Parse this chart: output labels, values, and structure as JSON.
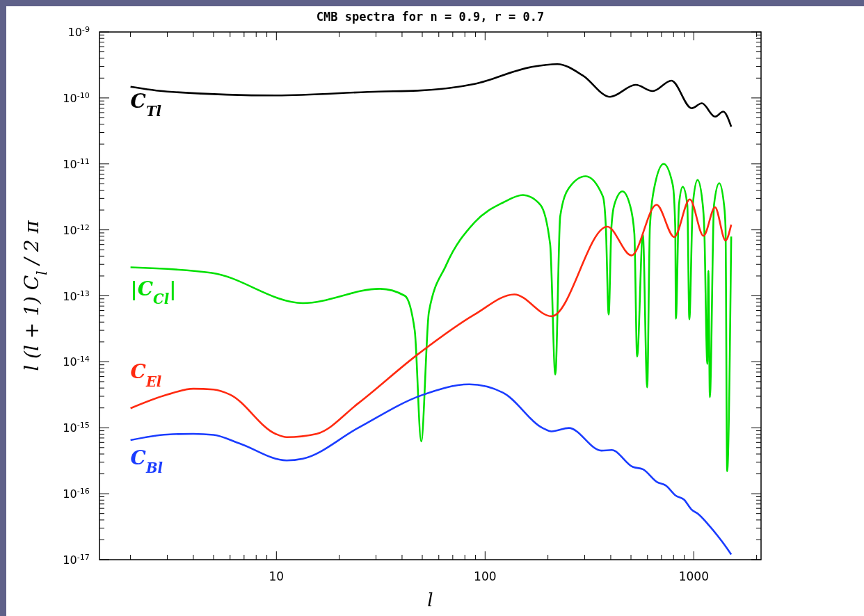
{
  "chart_data": {
    "type": "line",
    "title": "CMB spectra for n = 0.9, r = 0.7",
    "xlabel": "l",
    "ylabel": "l (l + 1) C$_{l}$ / 2 π",
    "log": "xy",
    "xlim": [
      1.42,
      2100
    ],
    "ylim": [
      1e-17,
      1e-09
    ],
    "xticks": [
      {
        "value": 2,
        "label": null
      },
      {
        "value": 3,
        "label": null
      },
      {
        "value": 4,
        "label": null
      },
      {
        "value": 5,
        "label": null
      },
      {
        "value": 6,
        "label": null
      },
      {
        "value": 7,
        "label": null
      },
      {
        "value": 8,
        "label": null
      },
      {
        "value": 9,
        "label": null
      },
      10,
      {
        "value": 20,
        "label": null
      },
      {
        "value": 30,
        "label": null
      },
      {
        "value": 40,
        "label": null
      },
      {
        "value": 50,
        "label": null
      },
      {
        "value": 60,
        "label": null
      },
      {
        "value": 70,
        "label": null
      },
      {
        "value": 80,
        "label": null
      },
      {
        "value": 90,
        "label": null
      },
      100,
      {
        "value": 200,
        "label": null
      },
      {
        "value": 300,
        "label": null
      },
      {
        "value": 400,
        "label": null
      },
      {
        "value": 500,
        "label": null
      },
      {
        "value": 600,
        "label": null
      },
      {
        "value": 700,
        "label": null
      },
      {
        "value": 800,
        "label": null
      },
      {
        "value": 900,
        "label": null
      },
      1000,
      {
        "value": 2000,
        "label": null
      }
    ],
    "yticks": [
      {
        "value": 1e-17,
        "label": "10$^{-17}$"
      },
      {
        "value": 2e-17,
        "label": null
      },
      {
        "value": 3e-17,
        "label": null
      },
      {
        "value": 4e-17,
        "label": null
      },
      {
        "value": 5e-17,
        "label": null
      },
      {
        "value": 6e-17,
        "label": null
      },
      {
        "value": 7e-17,
        "label": null
      },
      {
        "value": 8e-17,
        "label": null
      },
      {
        "value": 9e-17,
        "label": null
      },
      {
        "value": 1e-16,
        "label": "10$^{-16}$"
      },
      {
        "value": 2e-16,
        "label": null
      },
      {
        "value": 3e-16,
        "label": null
      },
      {
        "value": 4e-16,
        "label": null
      },
      {
        "value": 5e-16,
        "label": null
      },
      {
        "value": 6e-16,
        "label": null
      },
      {
        "value": 7e-16,
        "label": null
      },
      {
        "value": 8e-16,
        "label": null
      },
      {
        "value": 9e-16,
        "label": null
      },
      {
        "value": 1e-15,
        "label": "10$^{-15}$"
      },
      {
        "value": 2e-15,
        "label": null
      },
      {
        "value": 3e-15,
        "label": null
      },
      {
        "value": 4e-15,
        "label": null
      },
      {
        "value": 5e-15,
        "label": null
      },
      {
        "value": 6e-15,
        "label": null
      },
      {
        "value": 7e-15,
        "label": null
      },
      {
        "value": 8e-15,
        "label": null
      },
      {
        "value": 9e-15,
        "label": null
      },
      {
        "value": 1e-14,
        "label": "10$^{-14}$"
      },
      {
        "value": 2e-14,
        "label": null
      },
      {
        "value": 3e-14,
        "label": null
      },
      {
        "value": 4e-14,
        "label": null
      },
      {
        "value": 5e-14,
        "label": null
      },
      {
        "value": 6e-14,
        "label": null
      },
      {
        "value": 7e-14,
        "label": null
      },
      {
        "value": 8e-14,
        "label": null
      },
      {
        "value": 9e-14,
        "label": null
      },
      {
        "value": 1e-13,
        "label": "10$^{-13}$"
      },
      {
        "value": 2e-13,
        "label": null
      },
      {
        "value": 3e-13,
        "label": null
      },
      {
        "value": 4e-13,
        "label": null
      },
      {
        "value": 5e-13,
        "label": null
      },
      {
        "value": 6e-13,
        "label": null
      },
      {
        "value": 7e-13,
        "label": null
      },
      {
        "value": 8e-13,
        "label": null
      },
      {
        "value": 9e-13,
        "label": null
      },
      {
        "value": 1e-12,
        "label": "10$^{-12}$"
      },
      {
        "value": 2e-12,
        "label": null
      },
      {
        "value": 3e-12,
        "label": null
      },
      {
        "value": 4e-12,
        "label": null
      },
      {
        "value": 5e-12,
        "label": null
      },
      {
        "value": 6e-12,
        "label": null
      },
      {
        "value": 7e-12,
        "label": null
      },
      {
        "value": 8e-12,
        "label": null
      },
      {
        "value": 9e-12,
        "label": null
      },
      {
        "value": 1e-11,
        "label": "10$^{-11}$"
      },
      {
        "value": 2e-11,
        "label": null
      },
      {
        "value": 3e-11,
        "label": null
      },
      {
        "value": 4e-11,
        "label": null
      },
      {
        "value": 5e-11,
        "label": null
      },
      {
        "value": 6e-11,
        "label": null
      },
      {
        "value": 7e-11,
        "label": null
      },
      {
        "value": 8e-11,
        "label": null
      },
      {
        "value": 9e-11,
        "label": null
      },
      {
        "value": 1e-10,
        "label": "10$^{-10}$"
      },
      {
        "value": 2e-10,
        "label": null
      },
      {
        "value": 3e-10,
        "label": null
      },
      {
        "value": 4e-10,
        "label": null
      },
      {
        "value": 5e-10,
        "label": null
      },
      {
        "value": 6e-10,
        "label": null
      },
      {
        "value": 7e-10,
        "label": null
      },
      {
        "value": 8e-10,
        "label": null
      },
      {
        "value": 9e-10,
        "label": null
      },
      {
        "value": 1e-09,
        "label": "10$^{-9}$"
      }
    ],
    "series": [
      {
        "name": "C$_{Tl}$",
        "color": "#000000",
        "x": [
          2,
          3,
          10,
          31,
          47.5,
          89,
          167,
          222,
          294,
          397,
          527,
          636,
          781,
          977,
          1093,
          1264,
          1384,
          1511
        ],
        "values": [
          1.48e-10,
          1.25e-10,
          1.09e-10,
          1.25e-10,
          1.29e-10,
          1.63e-10,
          2.95e-10,
          3.26e-10,
          2.19e-10,
          1.04e-10,
          1.58e-10,
          1.27e-10,
          1.83e-10,
          6.98e-11,
          8.3e-11,
          5.2e-11,
          6.2e-11,
          3.66e-11
        ]
      },
      {
        "name": "|C$_{Cl}$|",
        "color": "#00e000",
        "x": [
          2,
          4.9,
          13.4,
          31.4,
          41.3,
          46,
          49.4,
          53.8,
          65,
          89,
          122,
          152,
          184,
          205,
          217,
          229,
          252,
          303,
          367,
          379,
          391,
          403,
          416,
          455,
          494,
          519,
          535,
          570,
          598,
          616,
          646,
          717,
          793,
          815,
          821,
          849,
          885,
          931,
          952,
          989,
          1043,
          1104,
          1122,
          1161,
          1175,
          1194,
          1250,
          1324,
          1396,
          1419,
          1445,
          1511
        ],
        "values": [
          2.7e-13,
          2.23e-13,
          7.76e-14,
          1.28e-13,
          1e-13,
          3e-14,
          6.2e-16,
          5.7e-14,
          2.9e-13,
          1.3e-12,
          2.6e-12,
          3.37e-12,
          2.4e-12,
          6e-13,
          6.4e-15,
          1.6e-12,
          4.3e-12,
          6.5e-12,
          3.2e-12,
          1.1e-12,
          5.2e-14,
          1.1e-12,
          2.4e-12,
          3.83e-12,
          2.4e-12,
          8.8e-13,
          1.2e-14,
          8.6e-13,
          4.1e-15,
          1.1e-12,
          4.3e-12,
          1e-11,
          4.8e-12,
          1.1e-12,
          4.5e-14,
          2.4e-12,
          4.5e-12,
          2.4e-12,
          4.4e-14,
          2.4e-12,
          5.7e-12,
          2.4e-12,
          1.1e-12,
          9.3e-15,
          2.4e-13,
          2.9e-15,
          2.4e-12,
          5.1e-12,
          2.4e-12,
          1.1e-12,
          2.2e-16,
          7.9e-13
        ]
      },
      {
        "name": "C$_{El}$",
        "color": "#ff2a10",
        "x": [
          2,
          3,
          4,
          5,
          6,
          9.9,
          11.2,
          15.6,
          24.6,
          47.5,
          89,
          138,
          208,
          385,
          503,
          663,
          806,
          957,
          1113,
          1264,
          1419,
          1511
        ],
        "values": [
          1.97e-15,
          3.18e-15,
          3.9e-15,
          3.8e-15,
          3.18e-15,
          8.1e-16,
          7.2e-16,
          8.1e-16,
          2.33e-15,
          1.29e-14,
          5.2e-14,
          1.05e-13,
          4.9e-14,
          1.12e-12,
          4.1e-13,
          2.4e-12,
          7.8e-13,
          2.9e-12,
          8.1e-13,
          2.2e-12,
          6.9e-13,
          1.2e-12
        ]
      },
      {
        "name": "C$_{Bl}$",
        "color": "#1a3cff",
        "x": [
          2,
          3,
          4,
          5,
          6.65,
          11.2,
          13.4,
          24.6,
          49.5,
          84,
          122,
          190,
          208,
          252,
          361,
          404,
          510,
          570,
          667,
          733,
          819,
          899,
          973,
          1052,
          1194,
          1375,
          1511
        ],
        "values": [
          6.5e-16,
          7.9e-16,
          8.1e-16,
          7.8e-16,
          5.8e-16,
          3.2e-16,
          3.4e-16,
          9.9e-16,
          3.1e-15,
          4.55e-15,
          3.4e-15,
          9.8e-16,
          8.8e-16,
          9.9e-16,
          4.5e-16,
          4.6e-16,
          2.55e-16,
          2.35e-16,
          1.5e-16,
          1.34e-16,
          9.4e-17,
          8.1e-17,
          5.8e-17,
          4.9e-17,
          3.2e-17,
          1.83e-17,
          1.2e-17
        ]
      }
    ]
  }
}
